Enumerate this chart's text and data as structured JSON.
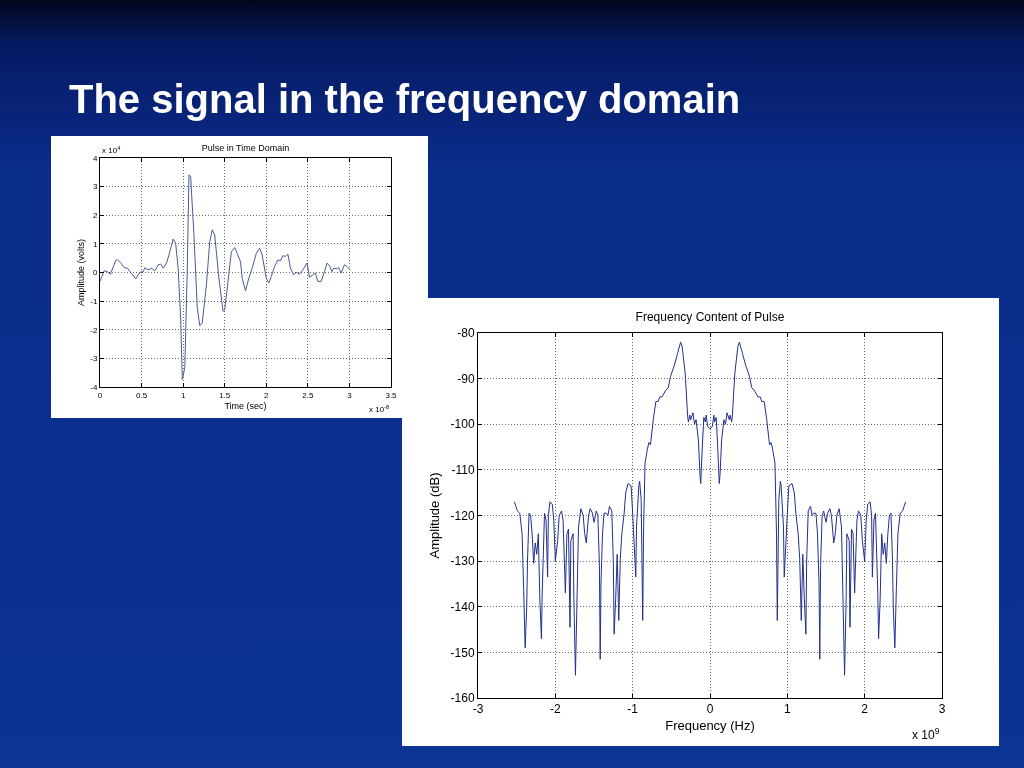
{
  "chart_data": [
    {
      "type": "other",
      "title": "The signal in the frequency domain"
    },
    {
      "type": "line",
      "title": "Pulse in Time Domain",
      "xlabel": "Time (sec)",
      "ylabel": "Amplitude (volts)",
      "color": "#4d5a94",
      "x": [
        0,
        0.05,
        0.09,
        0.125,
        0.19,
        0.21,
        0.25,
        0.29,
        0.33,
        0.375,
        0.43,
        0.48,
        0.52,
        0.54,
        0.58,
        0.62,
        0.66,
        0.7,
        0.73,
        0.76,
        0.8,
        0.83,
        0.88,
        0.91,
        0.94,
        0.97,
        0.99,
        1.02,
        1.05,
        1.07,
        1.09,
        1.13,
        1.17,
        1.2,
        1.23,
        1.28,
        1.32,
        1.35,
        1.38,
        1.43,
        1.48,
        1.5,
        1.54,
        1.58,
        1.62,
        1.65,
        1.69,
        1.71,
        1.75,
        1.79,
        1.83,
        1.88,
        1.92,
        1.95,
        2.0,
        2.03,
        2.06,
        2.1,
        2.14,
        2.17,
        2.2,
        2.23,
        2.26,
        2.29,
        2.33,
        2.36,
        2.4,
        2.44,
        2.49,
        2.52,
        2.56,
        2.59,
        2.62,
        2.66,
        2.7,
        2.73,
        2.76,
        2.79,
        2.81,
        2.84,
        2.87,
        2.9,
        2.94,
        2.97,
        3.0
      ],
      "values": [
        -0.31,
        0.06,
        0.03,
        -0.06,
        0.43,
        0.45,
        0.33,
        0.17,
        0.15,
        -0.02,
        -0.22,
        0.01,
        0.03,
        0.17,
        0.09,
        0.15,
        0.06,
        0.27,
        0.29,
        0.15,
        0.33,
        0.62,
        1.17,
        1.02,
        0.15,
        -1.59,
        -3.74,
        -3.33,
        0.15,
        3.41,
        3.35,
        1.31,
        -1.24,
        -1.85,
        -1.77,
        -0.43,
        1.08,
        1.49,
        1.31,
        -0.2,
        -1.36,
        -1.3,
        -0.31,
        0.73,
        0.87,
        0.67,
        0.38,
        -0.2,
        -0.64,
        -0.2,
        0.15,
        0.67,
        0.85,
        0.62,
        -0.2,
        -0.37,
        -0.14,
        0.21,
        0.44,
        0.41,
        0.59,
        0.56,
        0.64,
        0.15,
        -0.08,
        0.01,
        -0.06,
        0.09,
        0.33,
        -0.17,
        -0.08,
        -0.02,
        -0.31,
        -0.31,
        0.03,
        0.33,
        0.23,
        0.03,
        0.15,
        0.13,
        0.17,
        -0.02,
        0.27,
        0.21,
        0.12
      ],
      "xlim": [
        0,
        3.5
      ],
      "xticks": [
        0,
        0.5,
        1,
        1.5,
        2,
        2.5,
        3,
        3.5
      ],
      "ylim": [
        -4,
        4
      ],
      "yticks": [
        -4,
        -3,
        -2,
        -1,
        0,
        1,
        2,
        3,
        4
      ],
      "grid": true,
      "annotations": [
        "x 10$^{4}$",
        "x 10$^{-8}$"
      ]
    },
    {
      "type": "line",
      "title": "Frequency Content of Pulse",
      "xlabel": "Frequency (Hz)",
      "ylabel": "Amplitude (dB)",
      "color": "#22308c",
      "x": [
        -2.53,
        -2.49,
        -2.46,
        -2.43,
        -2.41,
        -2.39,
        -2.37,
        -2.36,
        -2.34,
        -2.32,
        -2.3,
        -2.28,
        -2.26,
        -2.24,
        -2.22,
        -2.2,
        -2.18,
        -2.17,
        -2.14,
        -2.12,
        -2.1,
        -2.09,
        -2.07,
        -2.04,
        -2.02,
        -2.0,
        -1.97,
        -1.95,
        -1.92,
        -1.9,
        -1.87,
        -1.85,
        -1.83,
        -1.81,
        -1.8,
        -1.77,
        -1.76,
        -1.74,
        -1.72,
        -1.7,
        -1.67,
        -1.64,
        -1.62,
        -1.6,
        -1.57,
        -1.55,
        -1.52,
        -1.5,
        -1.47,
        -1.45,
        -1.43,
        -1.42,
        -1.41,
        -1.39,
        -1.37,
        -1.34,
        -1.32,
        -1.3,
        -1.27,
        -1.25,
        -1.24,
        -1.22,
        -1.2,
        -1.18,
        -1.16,
        -1.14,
        -1.11,
        -1.09,
        -1.06,
        -1.02,
        -1.0,
        -0.97,
        -0.96,
        -0.95,
        -0.92,
        -0.91,
        -0.89,
        -0.87,
        -0.86,
        -0.84,
        -0.81,
        -0.79,
        -0.77,
        -0.73,
        -0.7,
        -0.67,
        -0.65,
        -0.62,
        -0.57,
        -0.54,
        -0.51,
        -0.46,
        -0.42,
        -0.38,
        -0.36,
        -0.32,
        -0.29,
        -0.28,
        -0.26,
        -0.25,
        -0.22,
        -0.2,
        -0.18,
        -0.15,
        -0.13,
        -0.12,
        -0.1,
        -0.08,
        -0.06,
        -0.05,
        -0.03,
        0,
        0.03,
        0.05,
        0.06,
        0.08,
        0.1,
        0.12,
        0.13,
        0.15,
        0.18,
        0.2,
        0.22,
        0.25,
        0.26,
        0.28,
        0.29,
        0.32,
        0.36,
        0.38,
        0.42,
        0.46,
        0.51,
        0.54,
        0.57,
        0.62,
        0.65,
        0.67,
        0.7,
        0.73,
        0.77,
        0.79,
        0.81,
        0.84,
        0.86,
        0.87,
        0.89,
        0.91,
        0.92,
        0.95,
        0.96,
        0.97,
        1.0,
        1.02,
        1.06,
        1.09,
        1.11,
        1.14,
        1.16,
        1.18,
        1.2,
        1.22,
        1.24,
        1.25,
        1.27,
        1.3,
        1.32,
        1.34,
        1.37,
        1.39,
        1.41,
        1.42,
        1.43,
        1.45,
        1.47,
        1.5,
        1.52,
        1.55,
        1.57,
        1.6,
        1.62,
        1.64,
        1.67,
        1.7,
        1.72,
        1.74,
        1.76,
        1.77,
        1.8,
        1.81,
        1.83,
        1.85,
        1.87,
        1.9,
        1.92,
        1.95,
        1.97,
        2.0,
        2.02,
        2.04,
        2.07,
        2.09,
        2.1,
        2.12,
        2.14,
        2.17,
        2.18,
        2.2,
        2.22,
        2.24,
        2.26,
        2.28,
        2.3,
        2.32,
        2.34,
        2.36,
        2.37,
        2.39,
        2.41,
        2.43,
        2.46,
        2.49,
        2.53
      ],
      "values": [
        -117,
        -119,
        -119.5,
        -124,
        -136,
        -149,
        -140,
        -130,
        -119.5,
        -120,
        -124,
        -130.5,
        -126,
        -128.5,
        -124,
        -138.5,
        -147,
        -137,
        -119.5,
        -121,
        -133.5,
        -120,
        -117,
        -117.5,
        -121,
        -130,
        -125.5,
        -120,
        -119,
        -121,
        -137,
        -124,
        -123,
        -144.5,
        -125.5,
        -124,
        -138.5,
        -155,
        -138.5,
        -122.5,
        -118.5,
        -120,
        -124,
        -126,
        -120,
        -118.5,
        -119.5,
        -121.5,
        -119,
        -120,
        -131,
        -151.5,
        -135,
        -124,
        -119.5,
        -119.5,
        -120,
        -118,
        -119,
        -130,
        -146,
        -138.5,
        -128.5,
        -143,
        -129.5,
        -124,
        -119.5,
        -115,
        -113,
        -113.5,
        -119.5,
        -130,
        -133.5,
        -122.5,
        -113.5,
        -112.5,
        -116.5,
        -143,
        -124,
        -108.5,
        -105.5,
        -104,
        -104.5,
        -98.5,
        -95,
        -95,
        -94,
        -94,
        -92.5,
        -92,
        -89.5,
        -87,
        -84.5,
        -82,
        -83,
        -89,
        -98,
        -99.5,
        -98,
        -99,
        -97.5,
        -100,
        -99,
        -103.5,
        -111,
        -113,
        -105,
        -98.5,
        -99.5,
        -98,
        -100.5,
        -101,
        -100.5,
        -98,
        -99.5,
        -98.5,
        -105,
        -113,
        -111,
        -103.5,
        -99,
        -100,
        -97.5,
        -99,
        -98,
        -99.5,
        -98,
        -89,
        -83,
        -82,
        -84.5,
        -87,
        -89.5,
        -92,
        -92.5,
        -94,
        -94,
        -95,
        -95,
        -98.5,
        -104.5,
        -104,
        -105.5,
        -108.5,
        -124,
        -143,
        -116.5,
        -112.5,
        -113.5,
        -122.5,
        -133.5,
        -130,
        -119.5,
        -113.5,
        -113,
        -115,
        -119.5,
        -124,
        -129.5,
        -143,
        -128.5,
        -138.5,
        -146,
        -130,
        -119,
        -118,
        -120,
        -119.5,
        -119.5,
        -124,
        -135,
        -151.5,
        -131,
        -120,
        -119,
        -121.5,
        -119.5,
        -118.5,
        -120,
        -126,
        -124,
        -120,
        -118.5,
        -122.5,
        -138.5,
        -155,
        -138.5,
        -124,
        -125.5,
        -144.5,
        -123,
        -124,
        -137,
        -121,
        -119,
        -120,
        -125.5,
        -130,
        -121,
        -117.5,
        -117,
        -120,
        -133.5,
        -121,
        -119.5,
        -137,
        -147,
        -138.5,
        -124,
        -128.5,
        -126,
        -130.5,
        -124,
        -120,
        -119.5,
        -130,
        -140,
        -149,
        -136,
        -124,
        -119.5,
        -119,
        -117
      ],
      "xlim": [
        -3,
        3
      ],
      "xticks": [
        -3,
        -2,
        -1,
        0,
        1,
        2,
        3
      ],
      "ylim": [
        -160,
        -80
      ],
      "yticks": [
        -160,
        -150,
        -140,
        -130,
        -120,
        -110,
        -100,
        -90,
        -80
      ],
      "grid": true,
      "annotations": [
        "x 10$^{9}$"
      ]
    }
  ]
}
